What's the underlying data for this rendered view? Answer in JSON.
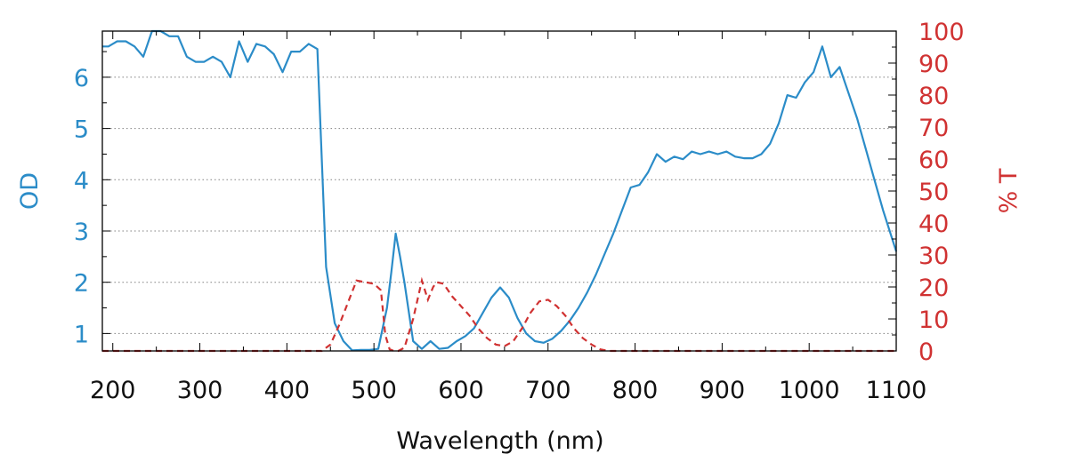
{
  "chart_data": {
    "type": "line",
    "xlabel": "Wavelength (nm)",
    "ylabel_left": "OD",
    "ylabel_right": "% T",
    "xlim": [
      188,
      1100
    ],
    "ylim_left": [
      0.66,
      6.9
    ],
    "ylim_right": [
      0,
      100
    ],
    "x_ticks": [
      200,
      300,
      400,
      500,
      600,
      700,
      800,
      900,
      1000,
      1100
    ],
    "y_left_ticks": [
      1,
      2,
      3,
      4,
      5,
      6
    ],
    "y_right_ticks": [
      0,
      10,
      20,
      30,
      40,
      50,
      60,
      70,
      80,
      90,
      100
    ],
    "grid": "horizontal dotted",
    "colors": {
      "od": "#2b8cc8",
      "transmission": "#d03232",
      "axis_left": "#2b8cc8",
      "axis_right": "#d03232",
      "frame": "#000000",
      "grid": "#808080"
    },
    "series": [
      {
        "axis": "left",
        "style": "solid",
        "x": [
          188,
          195,
          205,
          215,
          225,
          235,
          245,
          255,
          265,
          275,
          285,
          295,
          305,
          315,
          325,
          335,
          345,
          355,
          365,
          375,
          385,
          395,
          405,
          415,
          425,
          435,
          445,
          455,
          465,
          475,
          485,
          495,
          505,
          515,
          520,
          525,
          530,
          535,
          545,
          555,
          565,
          575,
          585,
          595,
          605,
          615,
          625,
          635,
          645,
          655,
          665,
          675,
          685,
          695,
          705,
          715,
          725,
          735,
          745,
          755,
          765,
          775,
          785,
          795,
          805,
          815,
          825,
          835,
          845,
          855,
          865,
          875,
          885,
          895,
          905,
          915,
          925,
          935,
          945,
          955,
          965,
          975,
          985,
          995,
          1005,
          1015,
          1025,
          1035,
          1045,
          1055,
          1065,
          1075,
          1085,
          1100
        ],
        "y": [
          6.6,
          6.6,
          6.7,
          6.7,
          6.6,
          6.4,
          6.9,
          6.9,
          6.8,
          6.8,
          6.4,
          6.3,
          6.3,
          6.4,
          6.3,
          6.0,
          6.7,
          6.3,
          6.65,
          6.6,
          6.45,
          6.1,
          6.5,
          6.5,
          6.65,
          6.55,
          2.3,
          1.2,
          0.85,
          0.67,
          0.68,
          0.68,
          0.7,
          1.5,
          2.2,
          2.95,
          2.5,
          2.0,
          0.85,
          0.7,
          0.85,
          0.7,
          0.72,
          0.85,
          0.95,
          1.1,
          1.4,
          1.7,
          1.9,
          1.7,
          1.3,
          1.0,
          0.85,
          0.82,
          0.9,
          1.05,
          1.25,
          1.5,
          1.8,
          2.15,
          2.55,
          2.95,
          3.4,
          3.85,
          3.9,
          4.15,
          4.5,
          4.35,
          4.45,
          4.4,
          4.55,
          4.5,
          4.55,
          4.5,
          4.55,
          4.45,
          4.42,
          4.42,
          4.5,
          4.7,
          5.1,
          5.65,
          5.6,
          5.9,
          6.1,
          6.6,
          6.0,
          6.2,
          5.7,
          5.2,
          4.6,
          4.0,
          3.4,
          2.6
        ]
      },
      {
        "axis": "right",
        "style": "dashed",
        "x": [
          188,
          300,
          400,
          440,
          450,
          460,
          470,
          480,
          490,
          500,
          508,
          513,
          518,
          523,
          528,
          535,
          545,
          555,
          562,
          568,
          572,
          580,
          590,
          600,
          610,
          620,
          630,
          640,
          650,
          660,
          670,
          680,
          690,
          700,
          710,
          720,
          730,
          740,
          750,
          760,
          770,
          780,
          790,
          800,
          1100
        ],
        "y": [
          0,
          0,
          0,
          0,
          2,
          8,
          15,
          22,
          21.5,
          21,
          19,
          5,
          0.5,
          0,
          0,
          1,
          10,
          22,
          16,
          20,
          21.5,
          21,
          17,
          14,
          11,
          7,
          4,
          2,
          1.5,
          3,
          7,
          12,
          15.5,
          16,
          14,
          11,
          7,
          4,
          2,
          0.5,
          0,
          0,
          0,
          0,
          0
        ]
      }
    ]
  }
}
